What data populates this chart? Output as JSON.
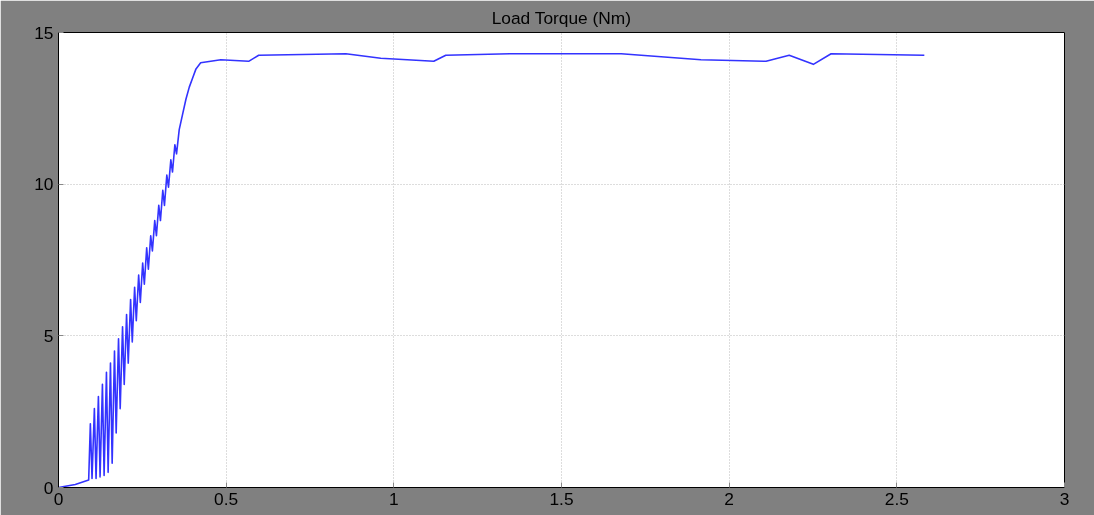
{
  "chart_data": {
    "type": "line",
    "title": "Load Torque (Nm)",
    "xlim": [
      0,
      3
    ],
    "ylim": [
      0,
      15
    ],
    "xticks": [
      0,
      0.5,
      1,
      1.5,
      2,
      2.5,
      3
    ],
    "yticks": [
      0,
      5,
      10,
      15
    ],
    "grid": true,
    "line_style": "solid",
    "marker": "none",
    "series": [
      {
        "color": "#3333ff",
        "x": [
          0,
          0.05,
          0.09,
          0.095,
          0.1,
          0.107,
          0.112,
          0.119,
          0.124,
          0.131,
          0.136,
          0.143,
          0.148,
          0.155,
          0.16,
          0.167,
          0.172,
          0.179,
          0.184,
          0.191,
          0.196,
          0.203,
          0.208,
          0.215,
          0.22,
          0.227,
          0.232,
          0.239,
          0.244,
          0.251,
          0.256,
          0.263,
          0.268,
          0.275,
          0.28,
          0.287,
          0.292,
          0.299,
          0.304,
          0.311,
          0.316,
          0.323,
          0.328,
          0.335,
          0.34,
          0.347,
          0.352,
          0.36,
          0.37,
          0.38,
          0.39,
          0.4,
          0.41,
          0.424,
          0.484,
          0.567,
          0.597,
          0.857,
          0.961,
          1.119,
          1.155,
          1.349,
          1.678,
          1.797,
          1.916,
          2.11,
          2.179,
          2.251,
          2.304,
          2.582
        ],
        "values": [
          0,
          0.1,
          0.25,
          2.1,
          0.3,
          2.6,
          0.3,
          3.0,
          0.35,
          3.4,
          0.4,
          3.8,
          0.5,
          4.1,
          0.8,
          4.5,
          1.8,
          4.9,
          2.6,
          5.3,
          3.4,
          5.7,
          4.1,
          6.2,
          4.8,
          6.6,
          5.5,
          7.0,
          6.1,
          7.4,
          6.7,
          7.9,
          7.2,
          8.3,
          7.8,
          8.8,
          8.3,
          9.3,
          8.8,
          9.8,
          9.3,
          10.3,
          9.9,
          10.8,
          10.4,
          11.3,
          11.0,
          11.8,
          12.3,
          12.8,
          13.2,
          13.5,
          13.8,
          14.0,
          14.1,
          14.05,
          14.25,
          14.3,
          14.15,
          14.05,
          14.25,
          14.3,
          14.3,
          14.2,
          14.1,
          14.05,
          14.25,
          13.95,
          14.3,
          14.25
        ]
      }
    ]
  }
}
